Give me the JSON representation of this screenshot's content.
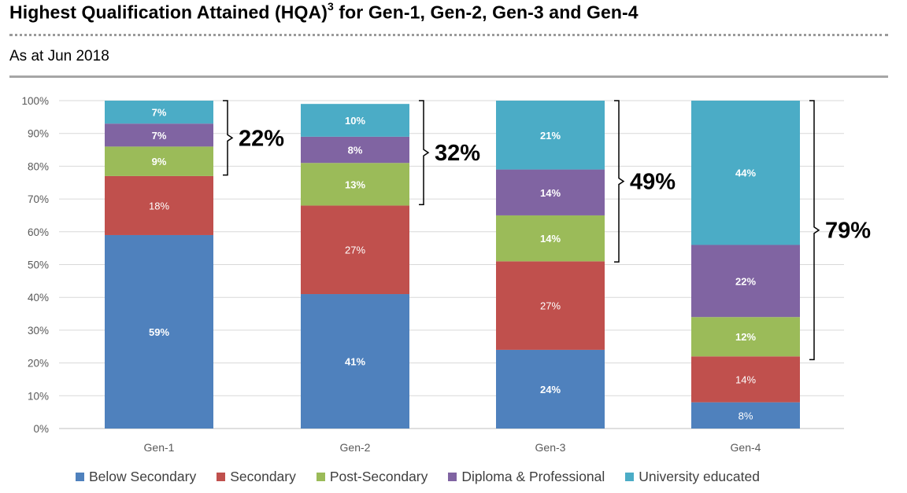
{
  "header": {
    "title": "Highest Qualification Attained (HQA)",
    "title_superscript": "3",
    "title_suffix": " for Gen-1, Gen-2, Gen-3 and Gen-4",
    "subtitle": "As at Jun 2018"
  },
  "chart_data": {
    "type": "bar",
    "stacked": true,
    "categories": [
      "Gen-1",
      "Gen-2",
      "Gen-3",
      "Gen-4"
    ],
    "y_ticks": [
      "0%",
      "10%",
      "20%",
      "30%",
      "40%",
      "50%",
      "60%",
      "70%",
      "80%",
      "90%",
      "100%"
    ],
    "ylim": [
      0,
      100
    ],
    "grid": true,
    "legend_position": "bottom",
    "series": [
      {
        "name": "Below Secondary",
        "color": "#4f81bd",
        "values": [
          59,
          41,
          24,
          8
        ],
        "labels": [
          "59%",
          "41%",
          "24%",
          "8%"
        ]
      },
      {
        "name": "Secondary",
        "color": "#c0504d",
        "values": [
          18,
          27,
          27,
          14
        ],
        "labels": [
          "18%",
          "27%",
          "27%",
          "14%"
        ]
      },
      {
        "name": "Post-Secondary",
        "color": "#9bbb59",
        "values": [
          9,
          13,
          14,
          12
        ],
        "labels": [
          "9%",
          "13%",
          "14%",
          "12%"
        ]
      },
      {
        "name": "Diploma & Professional",
        "color": "#8064a2",
        "values": [
          7,
          8,
          14,
          22
        ],
        "labels": [
          "7%",
          "8%",
          "14%",
          "22%"
        ]
      },
      {
        "name": "University educated",
        "color": "#4bacc6",
        "values": [
          7,
          10,
          21,
          44
        ],
        "labels": [
          "7%",
          "10%",
          "21%",
          "44%"
        ]
      }
    ],
    "annotations": [
      {
        "category": "Gen-1",
        "label": "22%",
        "from": 77.3,
        "to": 100
      },
      {
        "category": "Gen-2",
        "label": "32%",
        "from": 68.3,
        "to": 100
      },
      {
        "category": "Gen-3",
        "label": "49%",
        "from": 50.8,
        "to": 100
      },
      {
        "category": "Gen-4",
        "label": "79%",
        "from": 21.0,
        "to": 100
      }
    ]
  }
}
